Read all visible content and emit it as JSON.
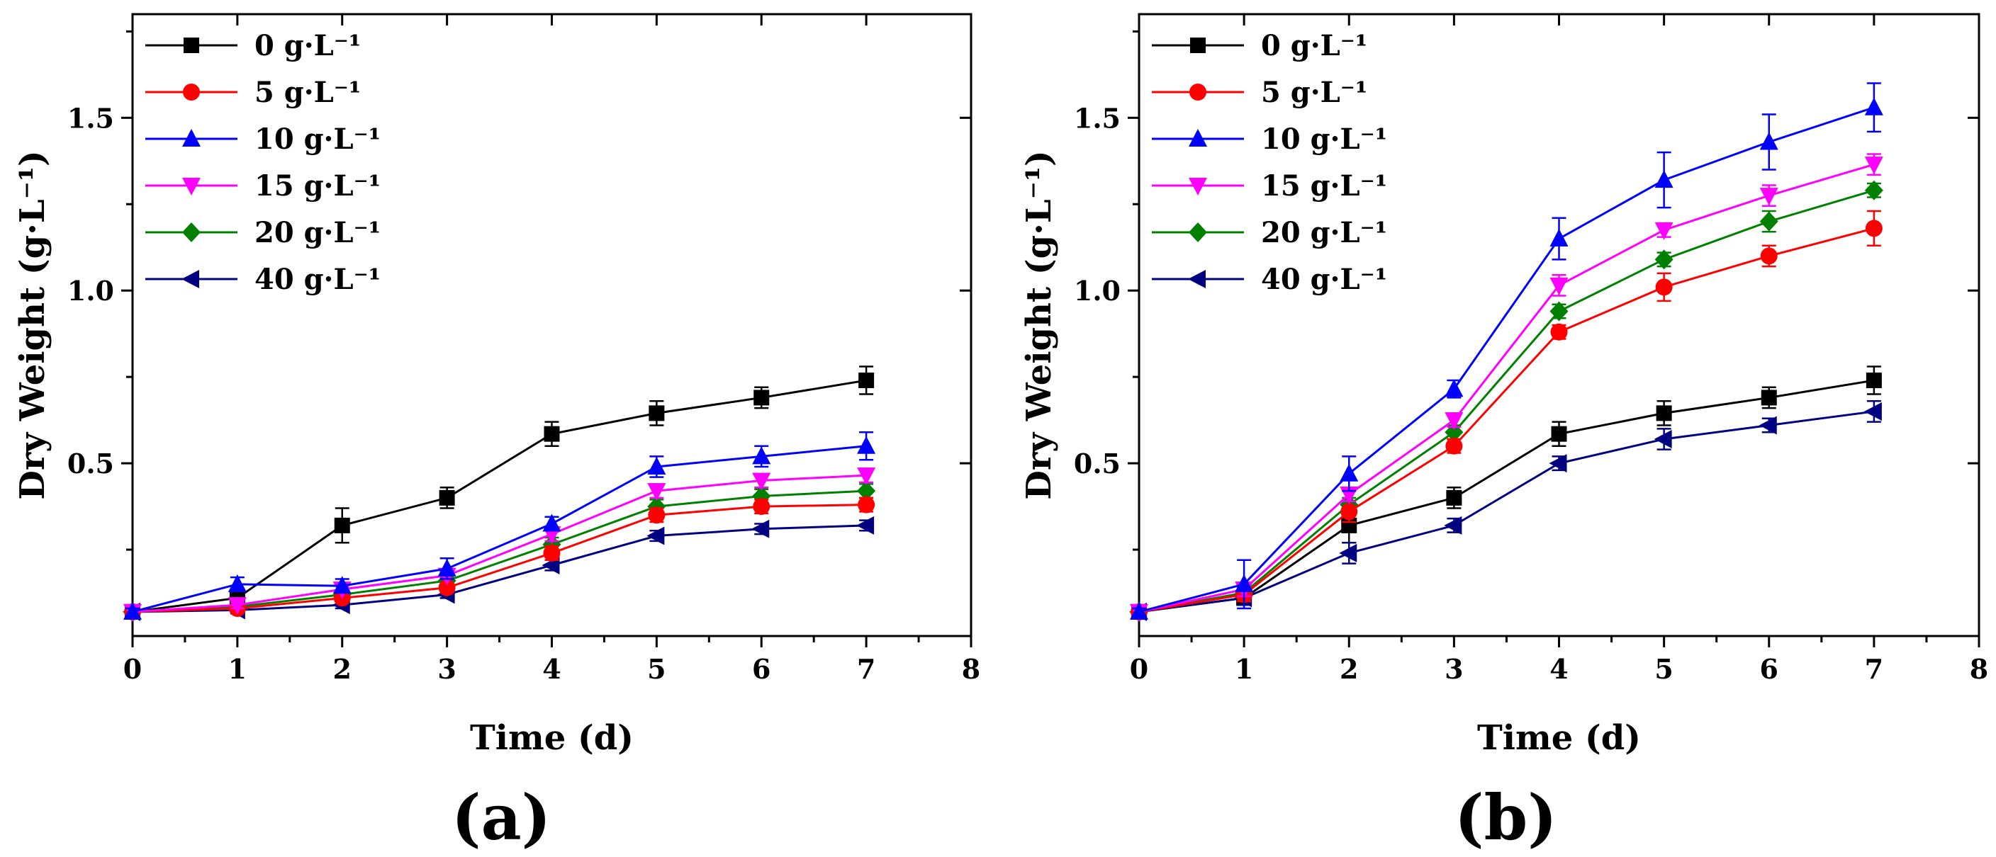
{
  "chart_data": [
    {
      "type": "line",
      "panel_label": "(a)",
      "title": "",
      "xlabel": "Time (d)",
      "ylabel": "Dry Weight (g·L⁻¹)",
      "xlim": [
        0,
        8
      ],
      "ylim": [
        0,
        1.8
      ],
      "xticks": [
        0,
        1,
        2,
        3,
        4,
        5,
        6,
        7,
        8
      ],
      "xtick_labels": [
        "0",
        "1",
        "2",
        "3",
        "4",
        "5",
        "6",
        "7",
        "8"
      ],
      "yticks": [
        0.5,
        1.0,
        1.5
      ],
      "ytick_labels": [
        "0.5",
        "1.0",
        "1.5"
      ],
      "grid": false,
      "legend_position": "top-left",
      "x": [
        0,
        1,
        2,
        3,
        4,
        5,
        6,
        7
      ],
      "series": [
        {
          "name": "0 g·L⁻¹",
          "color": "#000000",
          "marker": "square",
          "values": [
            0.07,
            0.11,
            0.32,
            0.4,
            0.585,
            0.645,
            0.69,
            0.74
          ],
          "errors": [
            0.01,
            0.02,
            0.05,
            0.03,
            0.035,
            0.035,
            0.03,
            0.04
          ]
        },
        {
          "name": "5 g·L⁻¹",
          "color": "#ff0000",
          "marker": "circle",
          "values": [
            0.07,
            0.08,
            0.11,
            0.14,
            0.24,
            0.35,
            0.375,
            0.38
          ],
          "errors": [
            0.01,
            0.01,
            0.01,
            0.01,
            0.02,
            0.02,
            0.02,
            0.02
          ]
        },
        {
          "name": "10 g·L⁻¹",
          "color": "#0000ff",
          "marker": "triangle-up",
          "values": [
            0.07,
            0.15,
            0.145,
            0.195,
            0.325,
            0.49,
            0.52,
            0.55
          ],
          "errors": [
            0.01,
            0.02,
            0.02,
            0.03,
            0.02,
            0.03,
            0.03,
            0.04
          ]
        },
        {
          "name": "15 g·L⁻¹",
          "color": "#ff00ff",
          "marker": "triangle-down",
          "values": [
            0.07,
            0.09,
            0.135,
            0.175,
            0.295,
            0.42,
            0.45,
            0.465
          ],
          "errors": [
            0.01,
            0.01,
            0.01,
            0.01,
            0.02,
            0.02,
            0.02,
            0.02
          ]
        },
        {
          "name": "20 g·L⁻¹",
          "color": "#008000",
          "marker": "diamond",
          "values": [
            0.07,
            0.085,
            0.12,
            0.16,
            0.265,
            0.375,
            0.405,
            0.42
          ],
          "errors": [
            0.01,
            0.01,
            0.01,
            0.01,
            0.02,
            0.02,
            0.02,
            0.02
          ]
        },
        {
          "name": "40 g·L⁻¹",
          "color": "#000080",
          "marker": "triangle-left",
          "values": [
            0.07,
            0.075,
            0.09,
            0.12,
            0.205,
            0.29,
            0.31,
            0.32
          ],
          "errors": [
            0.01,
            0.01,
            0.01,
            0.01,
            0.015,
            0.015,
            0.015,
            0.015
          ]
        }
      ]
    },
    {
      "type": "line",
      "panel_label": "(b)",
      "title": "",
      "xlabel": "Time (d)",
      "ylabel": "Dry Weight (g·L⁻¹)",
      "xlim": [
        0,
        8
      ],
      "ylim": [
        0,
        1.8
      ],
      "xticks": [
        0,
        1,
        2,
        3,
        4,
        5,
        6,
        7,
        8
      ],
      "xtick_labels": [
        "0",
        "1",
        "2",
        "3",
        "4",
        "5",
        "6",
        "7",
        "8"
      ],
      "yticks": [
        0.5,
        1.0,
        1.5
      ],
      "ytick_labels": [
        "0.5",
        "1.0",
        "1.5"
      ],
      "grid": false,
      "legend_position": "top-left",
      "x": [
        0,
        1,
        2,
        3,
        4,
        5,
        6,
        7
      ],
      "series": [
        {
          "name": "0 g·L⁻¹",
          "color": "#000000",
          "marker": "square",
          "values": [
            0.07,
            0.11,
            0.32,
            0.4,
            0.585,
            0.645,
            0.69,
            0.74
          ],
          "errors": [
            0.01,
            0.02,
            0.05,
            0.03,
            0.035,
            0.035,
            0.03,
            0.04
          ]
        },
        {
          "name": "5 g·L⁻¹",
          "color": "#ff0000",
          "marker": "circle",
          "values": [
            0.07,
            0.12,
            0.36,
            0.55,
            0.88,
            1.01,
            1.1,
            1.18
          ],
          "errors": [
            0.01,
            0.02,
            0.03,
            0.02,
            0.02,
            0.04,
            0.03,
            0.05
          ]
        },
        {
          "name": "10 g·L⁻¹",
          "color": "#0000ff",
          "marker": "triangle-up",
          "values": [
            0.07,
            0.15,
            0.47,
            0.715,
            1.15,
            1.32,
            1.43,
            1.53
          ],
          "errors": [
            0.01,
            0.07,
            0.05,
            0.025,
            0.06,
            0.08,
            0.08,
            0.07
          ]
        },
        {
          "name": "15 g·L⁻¹",
          "color": "#ff00ff",
          "marker": "triangle-down",
          "values": [
            0.07,
            0.135,
            0.41,
            0.625,
            1.015,
            1.175,
            1.275,
            1.365
          ],
          "errors": [
            0.01,
            0.02,
            0.02,
            0.02,
            0.03,
            0.02,
            0.03,
            0.03
          ]
        },
        {
          "name": "20 g·L⁻¹",
          "color": "#008000",
          "marker": "diamond",
          "values": [
            0.07,
            0.125,
            0.38,
            0.59,
            0.94,
            1.09,
            1.2,
            1.29
          ],
          "errors": [
            0.01,
            0.02,
            0.02,
            0.02,
            0.02,
            0.02,
            0.03,
            0.02
          ]
        },
        {
          "name": "40 g·L⁻¹",
          "color": "#000080",
          "marker": "triangle-left",
          "values": [
            0.07,
            0.11,
            0.24,
            0.32,
            0.5,
            0.57,
            0.61,
            0.65
          ],
          "errors": [
            0.01,
            0.02,
            0.03,
            0.02,
            0.02,
            0.03,
            0.02,
            0.03
          ]
        }
      ]
    }
  ]
}
